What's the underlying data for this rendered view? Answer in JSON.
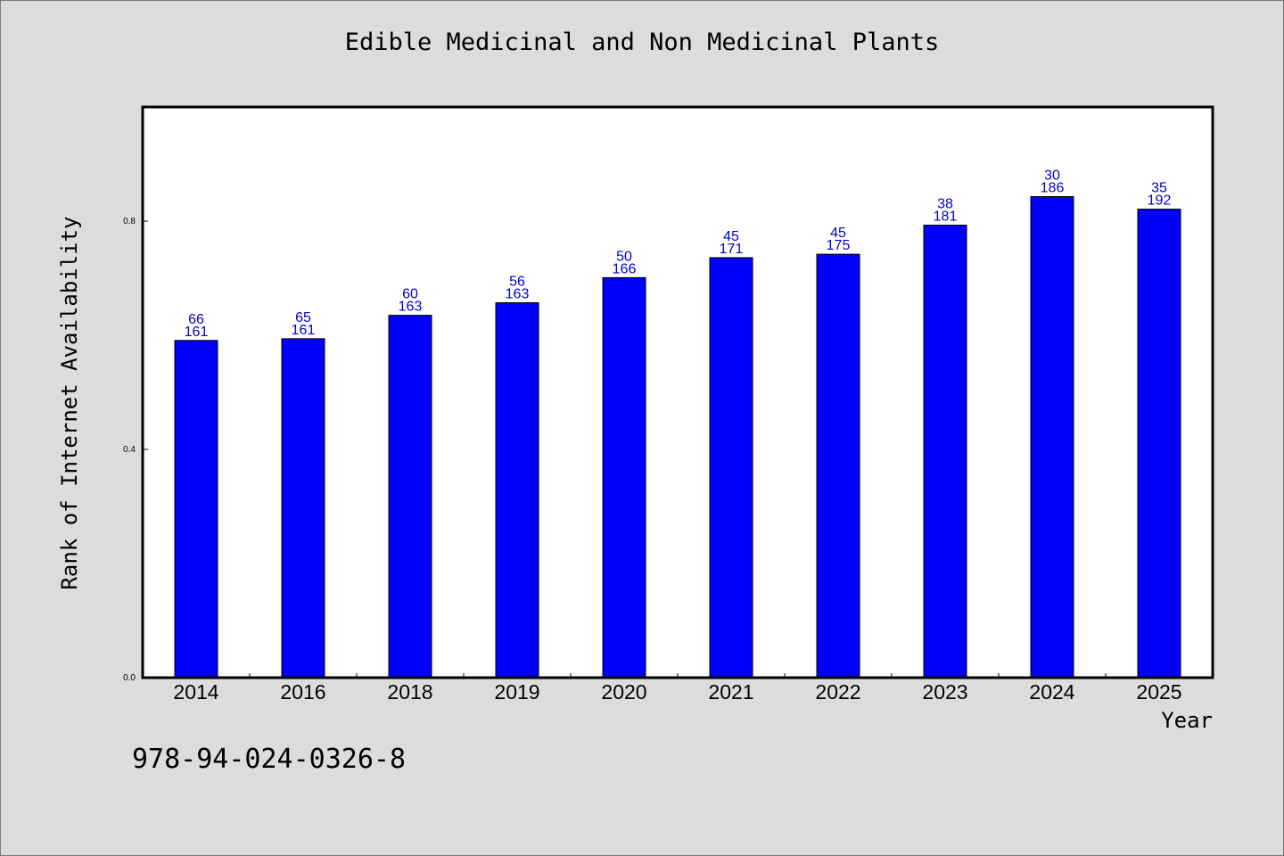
{
  "chart_data": {
    "type": "bar",
    "title": "Edible Medicinal and Non Medicinal Plants",
    "xlabel": "Year",
    "ylabel": "Rank of Internet Availability",
    "categories": [
      "2014",
      "2016",
      "2018",
      "2019",
      "2020",
      "2021",
      "2022",
      "2023",
      "2024",
      "2025"
    ],
    "values": [
      0.591,
      0.594,
      0.635,
      0.657,
      0.701,
      0.736,
      0.742,
      0.793,
      0.843,
      0.821
    ],
    "label_top": [
      "66",
      "65",
      "60",
      "56",
      "50",
      "45",
      "45",
      "38",
      "30",
      "35"
    ],
    "label_bottom": [
      "161",
      "161",
      "163",
      "163",
      "166",
      "171",
      "175",
      "181",
      "186",
      "192"
    ],
    "ylim": [
      0,
      1.0
    ],
    "yticks": [
      "0.0",
      "0.4",
      "0.8"
    ],
    "grid": false,
    "bar_color": "#0000ff",
    "label_color": "#0000cc"
  },
  "footer": {
    "isbn": "978-94-024-0326-8"
  }
}
